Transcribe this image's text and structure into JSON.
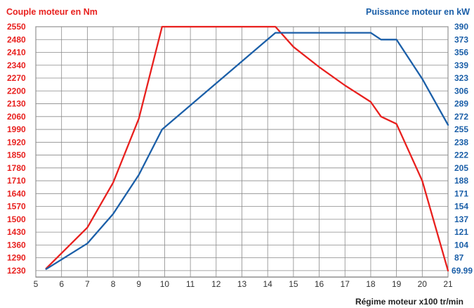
{
  "chart_data": {
    "type": "line",
    "title_left": "Couple moteur en Nm",
    "title_right": "Puissance moteur en kW",
    "xlabel": "Régime moteur x100 tr/min",
    "x_ticks": [
      "5",
      "6",
      "7",
      "8",
      "9",
      "10",
      "11",
      "12",
      "13",
      "14",
      "15",
      "16",
      "17",
      "18",
      "19",
      "20",
      "21"
    ],
    "xlim": [
      5,
      21
    ],
    "y_left_ticks": [
      "2550",
      "2480",
      "2410",
      "2340",
      "2270",
      "2200",
      "2130",
      "2060",
      "1990",
      "1920",
      "1850",
      "1780",
      "1710",
      "1640",
      "1570",
      "1500",
      "1430",
      "1360",
      "1290",
      "1230"
    ],
    "y_right_ticks": [
      "390",
      "373",
      "356",
      "339",
      "323",
      "306",
      "289",
      "272",
      "255",
      "238",
      "222",
      "205",
      "188",
      "171",
      "154",
      "137",
      "121",
      "104",
      "87",
      "69.99"
    ],
    "grid": true,
    "colors": {
      "torque": "#e8201e",
      "power": "#1b5fa8",
      "grid": "#8a8a8a"
    },
    "series": [
      {
        "axis": "left",
        "color": "#e8201e",
        "points": [
          [
            5.4,
            1240
          ],
          [
            7.0,
            1455
          ],
          [
            8.0,
            1700
          ],
          [
            9.0,
            2050
          ],
          [
            9.9,
            2550
          ],
          [
            14.3,
            2550
          ],
          [
            15.0,
            2440
          ],
          [
            16.0,
            2330
          ],
          [
            17.0,
            2230
          ],
          [
            18.0,
            2140
          ],
          [
            18.4,
            2060
          ],
          [
            19.0,
            2020
          ],
          [
            20.0,
            1710
          ],
          [
            21.0,
            1230
          ]
        ]
      },
      {
        "axis": "right",
        "color": "#1b5fa8",
        "points": [
          [
            5.4,
            72
          ],
          [
            7.0,
            106
          ],
          [
            8.0,
            144
          ],
          [
            9.0,
            196
          ],
          [
            9.9,
            255
          ],
          [
            14.3,
            382
          ],
          [
            18.0,
            382
          ],
          [
            18.4,
            373
          ],
          [
            19.0,
            373
          ],
          [
            20.0,
            322
          ],
          [
            21.0,
            261
          ]
        ]
      }
    ]
  }
}
